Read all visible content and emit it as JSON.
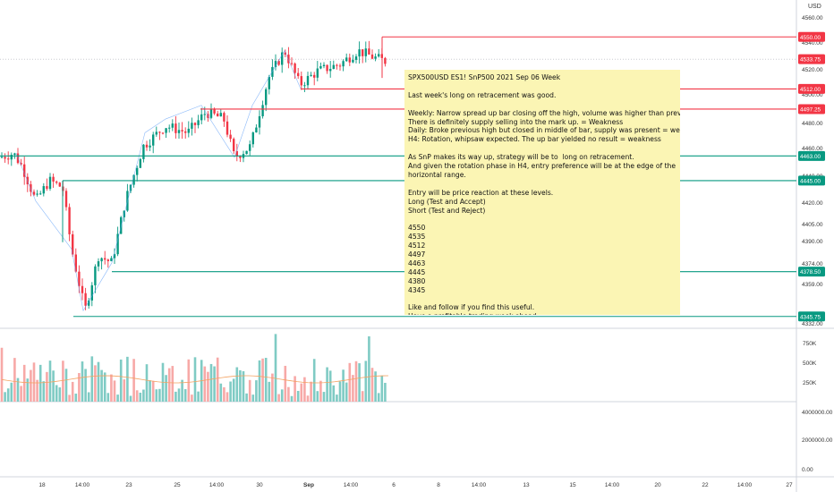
{
  "symbol": "SPX500USD ES1! SnP500 2021 Sep 06 Week",
  "currency": "USD",
  "note_lines": [
    "SPX500USD ES1! SnP500 2021 Sep 06 Week",
    "",
    "Last week's long on retracement was good.",
    "",
    "Weekly: Narrow spread up bar closing off the high, volume was higher than previous bar.",
    "There is definitely supply selling into the mark up. = Weakness",
    "Daily: Broke previous high but closed in middle of bar, supply was present = weakness.",
    "H4: Rotation, whipsaw expected. The up bar yielded no result = weakness",
    "",
    "As SnP makes its way up, strategy will be to  long on retracement.",
    "And given the rotation phase in H4, entry preference will be at the edge of the",
    "horizontal range.",
    "",
    "Entry will be price reaction at these levels.",
    "Long (Test and Accept)",
    "Short (Test and Reject)",
    "",
    "4550",
    "4535",
    "4512",
    "4497",
    "4463",
    "4445",
    "4380",
    "4345",
    "",
    "Like and follow if you find this useful.",
    "Have a profitable trading week ahead."
  ],
  "chart_data": [
    {
      "type": "candlestick",
      "price_axis_ticks": [
        "4560.00",
        "4540.00",
        "4520.00",
        "4500.00",
        "4480.00",
        "4460.00",
        "4440.00",
        "4420.00",
        "4405.00",
        "4390.00",
        "4374.00",
        "4359.00",
        "4332.00"
      ],
      "x_axis_ticks": [
        "18",
        "14:00",
        "23",
        "25",
        "14:00",
        "30",
        "Sep",
        "14:00",
        "6",
        "8",
        "14:00",
        "13",
        "15",
        "14:00",
        "20",
        "22",
        "14:00",
        "27"
      ],
      "current_price": "4533.75",
      "levels": [
        {
          "label": "4550.00",
          "color": "#f23645",
          "kind": "resistance"
        },
        {
          "label": "4512.00",
          "color": "#f23645",
          "kind": "resistance"
        },
        {
          "label": "4497.25",
          "color": "#f23645",
          "kind": "resistance"
        },
        {
          "label": "4463.00",
          "color": "#089981",
          "kind": "support"
        },
        {
          "label": "4445.00",
          "color": "#089981",
          "kind": "support"
        },
        {
          "label": "4378.50",
          "color": "#089981",
          "kind": "support"
        },
        {
          "label": "4345.75",
          "color": "#089981",
          "kind": "support"
        }
      ],
      "bar_colors": {
        "up": "#089981",
        "down": "#f23645"
      }
    },
    {
      "type": "bar",
      "title": "",
      "volume_axis_ticks": [
        "750K",
        "500K",
        "250K"
      ],
      "lower_axis_ticks": [
        "4000000.00",
        "2000000.00",
        "0.00"
      ]
    }
  ]
}
